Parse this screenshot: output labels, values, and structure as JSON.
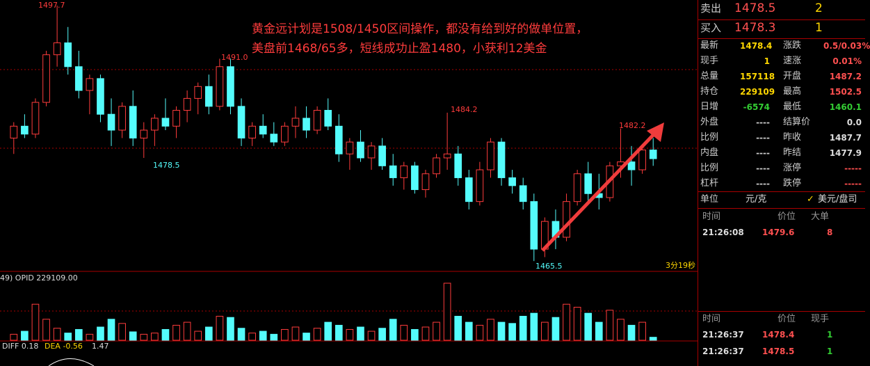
{
  "chart_data": {
    "type": "candlestick",
    "ylim": [
      1464.2,
      1498.4
    ],
    "up_color": "#ff3c3c",
    "down_color": "#54fcfc",
    "open": [
      1481,
      1482.5,
      1481.5,
      1485.5,
      1491.5,
      1493,
      1490,
      1487,
      1488.5,
      1484,
      1482,
      1485,
      1481,
      1482,
      1483.5,
      1482.5,
      1484.5,
      1486,
      1487.5,
      1485,
      1490,
      1485,
      1481,
      1482.5,
      1481.5,
      1480.5,
      1482.5,
      1483.5,
      1482,
      1484.5,
      1482.5,
      1479,
      1480.5,
      1478.5,
      1480,
      1477.5,
      1476,
      1477.5,
      1474.5,
      1476.5,
      1478.5,
      1479,
      1476,
      1473,
      1477,
      1480.5,
      1476,
      1475,
      1473,
      1467,
      1470.5,
      1468.5,
      1473,
      1476.5,
      1474,
      1473.5,
      1477.5,
      1478,
      1477,
      1479.5
    ],
    "high": [
      1483,
      1484,
      1486,
      1492,
      1497.7,
      1495,
      1492,
      1489,
      1489,
      1486,
      1485.5,
      1487,
      1483,
      1484,
      1486,
      1485,
      1487,
      1488,
      1489,
      1491,
      1491,
      1486,
      1483,
      1484,
      1483,
      1483,
      1485,
      1485,
      1485,
      1486,
      1484,
      1481,
      1482,
      1480.5,
      1481,
      1479,
      1478,
      1478,
      1477,
      1479,
      1484.2,
      1480,
      1477,
      1478,
      1481,
      1481,
      1477,
      1476,
      1474,
      1471,
      1472,
      1474,
      1477,
      1478,
      1476.5,
      1478,
      1482.2,
      1480,
      1480,
      1481
    ],
    "low": [
      1479,
      1481,
      1481,
      1485,
      1490,
      1489,
      1486,
      1484,
      1483,
      1480,
      1481,
      1480,
      1478.5,
      1480,
      1482,
      1481,
      1483,
      1484,
      1484,
      1484.5,
      1484,
      1480,
      1480,
      1481,
      1480,
      1480,
      1481,
      1481,
      1481.5,
      1482,
      1478,
      1477,
      1478,
      1477,
      1477,
      1475,
      1474.5,
      1474,
      1473.5,
      1476,
      1477,
      1475,
      1472,
      1472.5,
      1476,
      1475,
      1474,
      1472,
      1465.5,
      1466,
      1467,
      1468,
      1472.5,
      1473,
      1472,
      1473,
      1476,
      1475,
      1476.5,
      1477.5
    ],
    "close": [
      1482.5,
      1481.5,
      1485.5,
      1491.5,
      1493,
      1490,
      1487,
      1488.5,
      1484,
      1482,
      1485,
      1481,
      1482,
      1483.5,
      1482.5,
      1484.5,
      1486,
      1487.5,
      1485,
      1490,
      1485,
      1481,
      1482.5,
      1481.5,
      1480.5,
      1482.5,
      1483.5,
      1482,
      1484.5,
      1482.5,
      1479,
      1480.5,
      1478.5,
      1480,
      1477.5,
      1476,
      1477.5,
      1474.5,
      1476.5,
      1478.5,
      1479,
      1476,
      1473,
      1477,
      1480.5,
      1476,
      1475,
      1473,
      1467,
      1470.5,
      1468.5,
      1473,
      1476.5,
      1474,
      1473.5,
      1477.5,
      1478,
      1477,
      1479.5,
      1478.4
    ],
    "volume": [
      10,
      15,
      60,
      35,
      20,
      12,
      18,
      10,
      22,
      35,
      28,
      14,
      10,
      12,
      18,
      25,
      30,
      15,
      22,
      40,
      38,
      20,
      12,
      15,
      10,
      18,
      22,
      12,
      20,
      30,
      25,
      18,
      22,
      15,
      20,
      35,
      25,
      18,
      22,
      30,
      95,
      40,
      30,
      25,
      35,
      30,
      28,
      40,
      45,
      30,
      38,
      60,
      55,
      45,
      30,
      50,
      35,
      25,
      30,
      5
    ],
    "annotation": "黄金远计划是1508/1450区间操作，都没有给到好的做单位置，美盘前1468/65多，短线成功止盈1480，小获利12美金",
    "price_labels": [
      "1497.7",
      "1491.0",
      "1478.5",
      "1484.2",
      "1482.2",
      "1465.5"
    ],
    "timer": "3分19秒",
    "volume_label": "49)  OPID 229109.00",
    "macd": {
      "diff": "DIFF 0.18",
      "dea": "DEA -0.56",
      "macd": "1.47"
    }
  },
  "quote": {
    "sell": [
      "卖出",
      "1478.5",
      "2"
    ],
    "buy": [
      "买入",
      "1478.3",
      "1"
    ],
    "rows": [
      [
        "最新",
        "1478.4",
        "涨跌",
        "0.5/0.03%"
      ],
      [
        "现手",
        "1",
        "速涨",
        "0.01%"
      ],
      [
        "总量",
        "157118",
        "开盘",
        "1487.2"
      ],
      [
        "持仓",
        "229109",
        "最高",
        "1502.5"
      ],
      [
        "日增",
        "-6574",
        "最低",
        "1460.1"
      ],
      [
        "外盘",
        "----",
        "结算价",
        "0.0"
      ],
      [
        "比例",
        "----",
        "昨收",
        "1487.7"
      ],
      [
        "内盘",
        "----",
        "昨结",
        "1477.9"
      ],
      [
        "比例",
        "----",
        "涨停",
        "-----"
      ],
      [
        "杠杆",
        "----",
        "跌停",
        "-----"
      ]
    ],
    "unit": [
      "单位",
      "元/克",
      "美元/盘司"
    ],
    "big_header": [
      "时间",
      "价位",
      "大单"
    ],
    "big_rows": [
      [
        "21:26:08",
        "1479.6",
        "8"
      ]
    ],
    "tick_header": [
      "时间",
      "价位",
      "现手"
    ],
    "tick_rows": [
      [
        "21:26:37",
        "1478.4",
        "1"
      ],
      [
        "21:26:37",
        "1478.5",
        "1"
      ]
    ]
  }
}
